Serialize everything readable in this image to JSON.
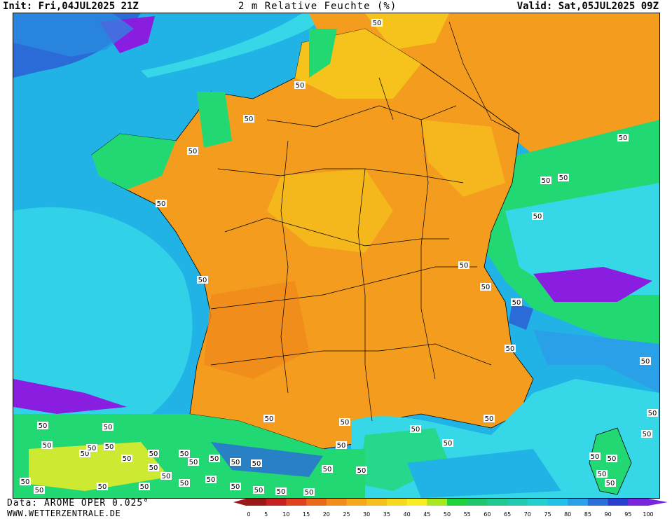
{
  "header": {
    "init": "Init: Fri,04JUL2025 21Z",
    "title": "2 m Relative Feuchte (%)",
    "valid": "Valid: Sat,05JUL2025 09Z"
  },
  "footer": {
    "data_source": "Data: AROME OPER 0.025°",
    "website": "WWW.WETTERZENTRALE.DE"
  },
  "map": {
    "quantity": "2 m relative humidity",
    "unit": "%",
    "contour_label": "50",
    "region_levels": {
      "atlantic_ocean": 75,
      "english_channel": 80,
      "mediterranean": 70,
      "france_interior": 35,
      "alps": 60,
      "pyrenees": 55,
      "spain_north": 60
    }
  },
  "colors": {
    "ocean_deep": "#22b3e6",
    "ocean_light": "#36d8e8",
    "coast_green": "#22d873",
    "land_orange": "#f39c1e",
    "land_yellow": "#f6c21c",
    "moist_blue": "#2a6bd8",
    "saturated_purple": "#8a1ee0"
  },
  "legend": {
    "ticks": [
      "0",
      "5",
      "10",
      "15",
      "20",
      "25",
      "30",
      "35",
      "40",
      "45",
      "50",
      "55",
      "60",
      "65",
      "70",
      "75",
      "80",
      "85",
      "90",
      "95",
      "100"
    ],
    "colors": [
      "#9a1a1a",
      "#c42222",
      "#e0421f",
      "#ea6a1c",
      "#f18d1d",
      "#f5a81b",
      "#f6c01c",
      "#f6d81c",
      "#f9ee22",
      "#a7e820",
      "#20d23c",
      "#1fc66b",
      "#20c990",
      "#21c9b2",
      "#22d0d2",
      "#22c1e8",
      "#2aa0e8",
      "#2a6fd8",
      "#2840cf",
      "#7a24e0"
    ]
  }
}
